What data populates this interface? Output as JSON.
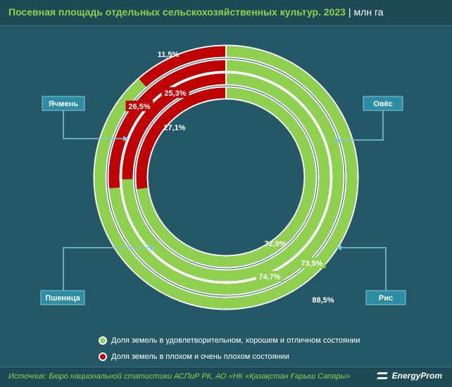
{
  "header": {
    "title": "Посевная площадь отдельных сельскохозяйственных культур. 2023",
    "unit": "млн га"
  },
  "chart_data": {
    "type": "donut",
    "series": [
      {
        "name": "Рис",
        "good": 88.5,
        "bad": 11.5
      },
      {
        "name": "Овёс",
        "good": 73.5,
        "bad": 26.5
      },
      {
        "name": "Пшеница",
        "good": 74.7,
        "bad": 25.3
      },
      {
        "name": "Ячмень",
        "good": 72.9,
        "bad": 27.1
      }
    ],
    "good_labels": [
      "88,5%",
      "73,5%",
      "74,7%",
      "72,9%"
    ],
    "bad_labels": [
      "11,5%",
      "26,5%",
      "25,3%",
      "27,1%"
    ],
    "colors": {
      "good": "#8fd14f",
      "bad": "#c00000"
    },
    "callouts": {
      "barley": "Ячмень",
      "oats": "Овёс",
      "wheat": "Пшеница",
      "rice": "Рис"
    },
    "legend": [
      {
        "label": "Доля земель в удовлетворительном, хорошем и отличном состоянии",
        "color": "#8fd14f"
      },
      {
        "label": "Доля земель в плохом и очень плохом состоянии",
        "color": "#c00000"
      }
    ]
  },
  "footer": {
    "source": "Источник: Бюро национальной статистики АСПиР РК, АО «НК «Қазақстан Ғарыш Сапары»",
    "logo": "EnergyProm"
  }
}
